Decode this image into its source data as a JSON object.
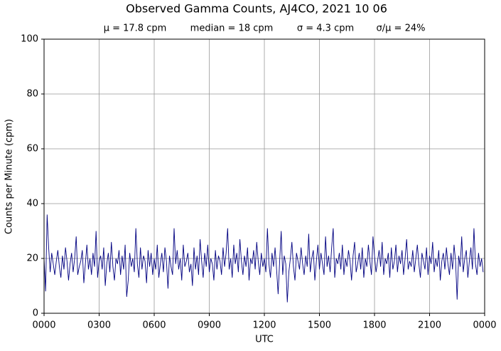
{
  "chart_data": {
    "type": "line",
    "title": "Observed Gamma Counts, AJ4CO, 2021 10 06",
    "subtitle": [
      "μ = 17.8 cpm",
      "median = 18 cpm",
      "σ = 4.3 cpm",
      "σ/μ = 24%"
    ],
    "x_label": "UTC",
    "y_label": "Counts per Minute (cpm)",
    "xlim": [
      0,
      1440
    ],
    "ylim": [
      0,
      100
    ],
    "xticks": [
      {
        "value": 0,
        "label": "0000"
      },
      {
        "value": 180,
        "label": "0300"
      },
      {
        "value": 360,
        "label": "0600"
      },
      {
        "value": 540,
        "label": "0900"
      },
      {
        "value": 720,
        "label": "1200"
      },
      {
        "value": 900,
        "label": "1500"
      },
      {
        "value": 1080,
        "label": "1800"
      },
      {
        "value": 1260,
        "label": "2100"
      },
      {
        "value": 1440,
        "label": "0000"
      }
    ],
    "yticks": [
      0,
      20,
      40,
      60,
      80,
      100
    ],
    "grid": true,
    "x": [
      0,
      5,
      10,
      15,
      20,
      25,
      30,
      35,
      40,
      45,
      50,
      55,
      60,
      65,
      70,
      75,
      80,
      85,
      90,
      95,
      100,
      105,
      110,
      115,
      120,
      125,
      130,
      135,
      140,
      145,
      150,
      155,
      160,
      165,
      170,
      175,
      180,
      185,
      190,
      195,
      200,
      205,
      210,
      215,
      220,
      225,
      230,
      235,
      240,
      245,
      250,
      255,
      260,
      265,
      270,
      275,
      280,
      285,
      290,
      295,
      300,
      305,
      310,
      315,
      320,
      325,
      330,
      335,
      340,
      345,
      350,
      355,
      360,
      365,
      370,
      375,
      380,
      385,
      390,
      395,
      400,
      405,
      410,
      415,
      420,
      425,
      430,
      435,
      440,
      445,
      450,
      455,
      460,
      465,
      470,
      475,
      480,
      485,
      490,
      495,
      500,
      505,
      510,
      515,
      520,
      525,
      530,
      535,
      540,
      545,
      550,
      555,
      560,
      565,
      570,
      575,
      580,
      585,
      590,
      595,
      600,
      605,
      610,
      615,
      620,
      625,
      630,
      635,
      640,
      645,
      650,
      655,
      660,
      665,
      670,
      675,
      680,
      685,
      690,
      695,
      700,
      705,
      710,
      715,
      720,
      725,
      730,
      735,
      740,
      745,
      750,
      755,
      760,
      765,
      770,
      775,
      780,
      785,
      790,
      795,
      800,
      805,
      810,
      815,
      820,
      825,
      830,
      835,
      840,
      845,
      850,
      855,
      860,
      865,
      870,
      875,
      880,
      885,
      890,
      895,
      900,
      905,
      910,
      915,
      920,
      925,
      930,
      935,
      940,
      945,
      950,
      955,
      960,
      965,
      970,
      975,
      980,
      985,
      990,
      995,
      1000,
      1005,
      1010,
      1015,
      1020,
      1025,
      1030,
      1035,
      1040,
      1045,
      1050,
      1055,
      1060,
      1065,
      1070,
      1075,
      1080,
      1085,
      1090,
      1095,
      1100,
      1105,
      1110,
      1115,
      1120,
      1125,
      1130,
      1135,
      1140,
      1145,
      1150,
      1155,
      1160,
      1165,
      1170,
      1175,
      1180,
      1185,
      1190,
      1195,
      1200,
      1205,
      1210,
      1215,
      1220,
      1225,
      1230,
      1235,
      1240,
      1245,
      1250,
      1255,
      1260,
      1265,
      1270,
      1275,
      1280,
      1285,
      1290,
      1295,
      1300,
      1305,
      1310,
      1315,
      1320,
      1325,
      1330,
      1335,
      1340,
      1345,
      1350,
      1355,
      1360,
      1365,
      1370,
      1375,
      1380,
      1385,
      1390,
      1395,
      1400,
      1405,
      1410,
      1415,
      1420,
      1425,
      1430,
      1435
    ],
    "series": [
      {
        "color": "#000080",
        "values": [
          20,
          8,
          36,
          24,
          15,
          22,
          18,
          14,
          19,
          23,
          17,
          13,
          21,
          16,
          24,
          19,
          12,
          18,
          22,
          15,
          20,
          28,
          14,
          17,
          19,
          23,
          11,
          18,
          25,
          16,
          20,
          14,
          22,
          17,
          30,
          13,
          19,
          21,
          16,
          24,
          10,
          18,
          22,
          15,
          26,
          17,
          12,
          20,
          18,
          23,
          14,
          21,
          16,
          25,
          6,
          12,
          22,
          17,
          20,
          15,
          31,
          18,
          13,
          24,
          16,
          21,
          19,
          11,
          23,
          17,
          22,
          14,
          20,
          16,
          25,
          13,
          18,
          22,
          15,
          24,
          19,
          9,
          21,
          17,
          14,
          31,
          18,
          23,
          16,
          20,
          12,
          25,
          17,
          19,
          22,
          15,
          18,
          10,
          24,
          16,
          21,
          14,
          27,
          19,
          13,
          22,
          17,
          25,
          15,
          20,
          18,
          12,
          23,
          16,
          21,
          19,
          14,
          24,
          17,
          22,
          31,
          16,
          20,
          13,
          25,
          18,
          22,
          15,
          27,
          19,
          14,
          21,
          17,
          24,
          12,
          20,
          18,
          23,
          16,
          26,
          19,
          14,
          22,
          17,
          20,
          15,
          31,
          18,
          13,
          22,
          17,
          24,
          16,
          7,
          19,
          30,
          14,
          21,
          18,
          4,
          15,
          20,
          26,
          17,
          12,
          22,
          19,
          16,
          24,
          18,
          14,
          21,
          17,
          29,
          15,
          20,
          23,
          12,
          19,
          25,
          16,
          22,
          18,
          14,
          28,
          17,
          21,
          15,
          24,
          31,
          13,
          20,
          18,
          22,
          16,
          25,
          14,
          20,
          17,
          23,
          19,
          12,
          21,
          26,
          15,
          18,
          22,
          16,
          24,
          13,
          20,
          17,
          25,
          19,
          14,
          28,
          21,
          15,
          19,
          23,
          17,
          26,
          14,
          20,
          18,
          22,
          13,
          24,
          16,
          19,
          25,
          15,
          21,
          18,
          23,
          14,
          20,
          27,
          16,
          19,
          17,
          23,
          15,
          20,
          25,
          18,
          13,
          22,
          19,
          16,
          24,
          14,
          21,
          18,
          26,
          15,
          20,
          17,
          23,
          12,
          19,
          22,
          16,
          24,
          18,
          14,
          22,
          16,
          25,
          19,
          5,
          21,
          17,
          28,
          15,
          20,
          23,
          13,
          19,
          24,
          16,
          31,
          18,
          14,
          22,
          17,
          20,
          15
        ]
      }
    ]
  }
}
